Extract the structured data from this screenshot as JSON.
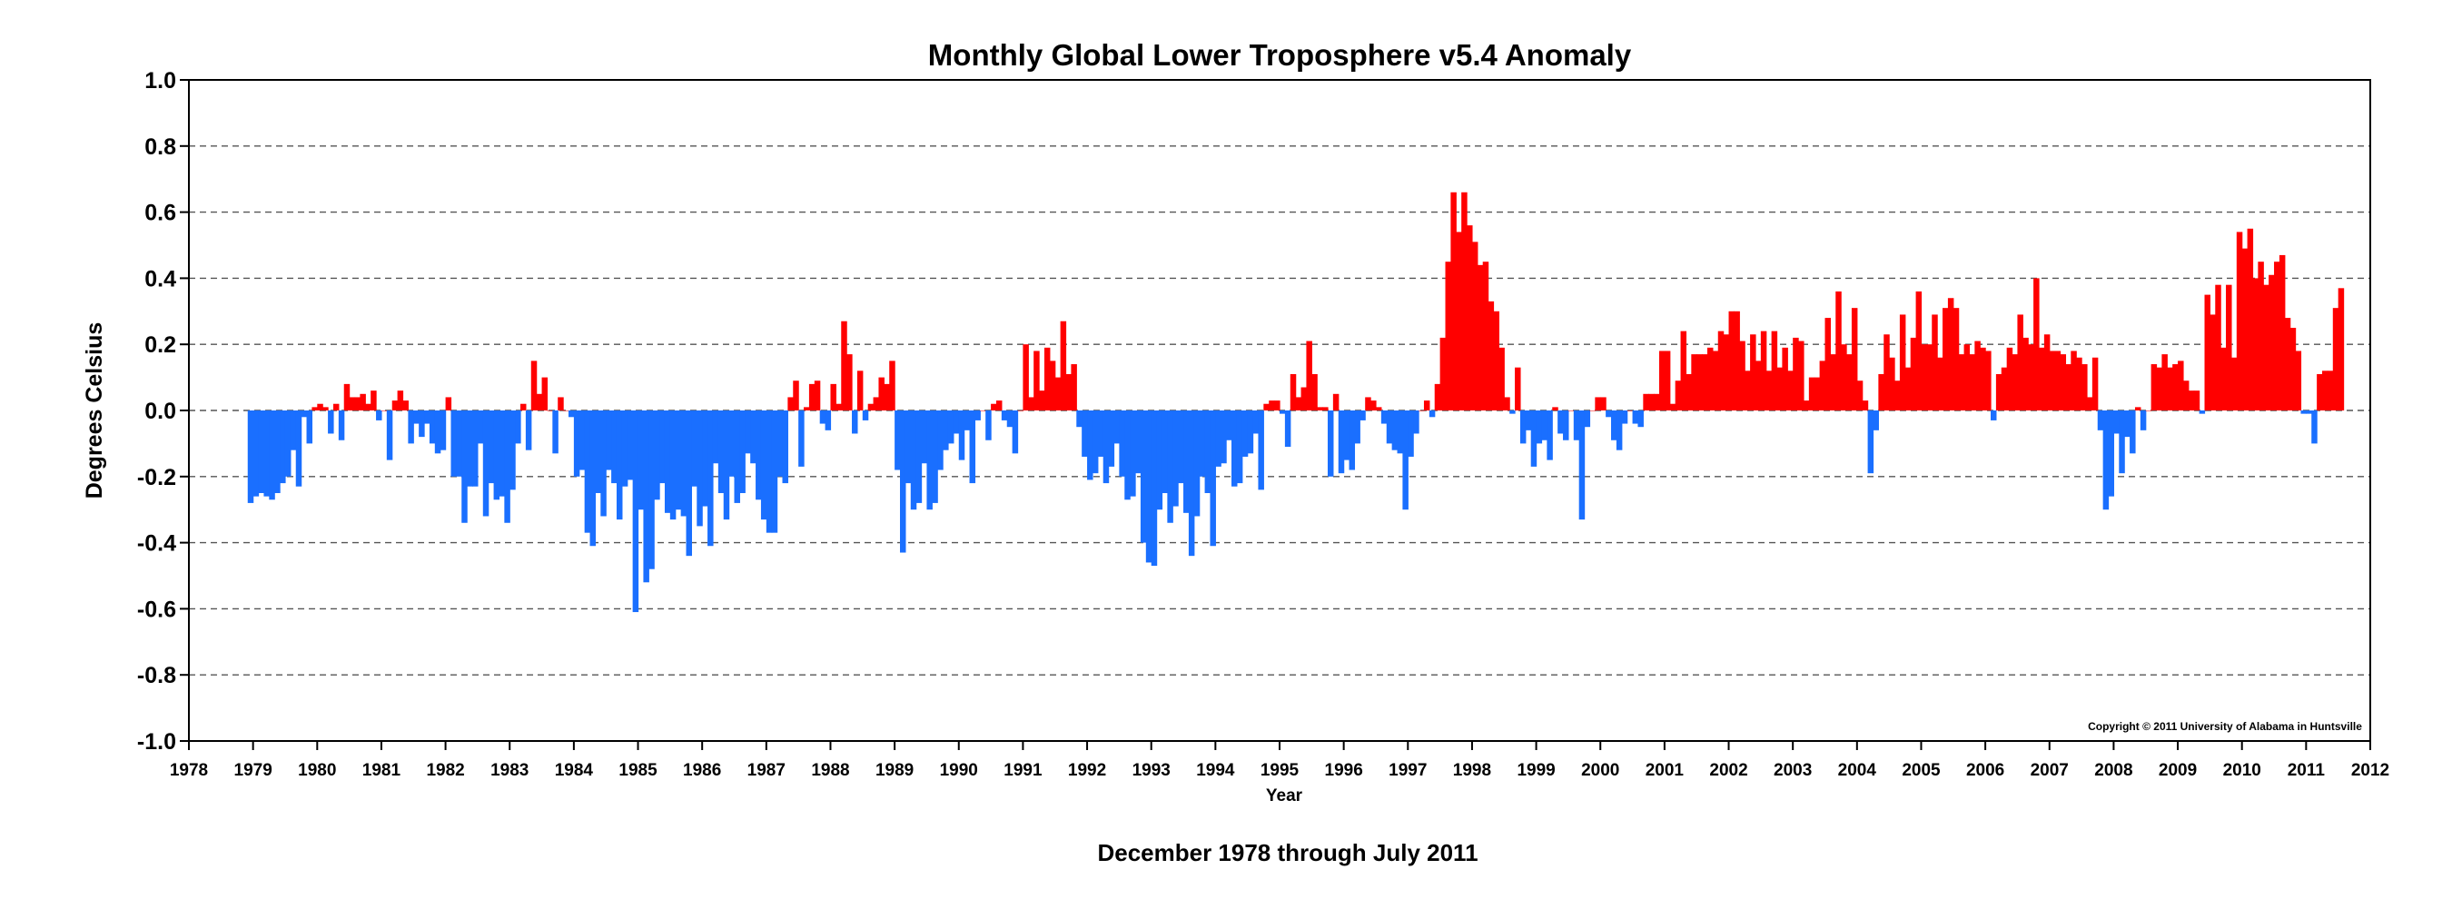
{
  "chart_data": {
    "type": "bar",
    "title": "Monthly Global Lower Troposphere v5.4 Anomaly",
    "subtitle": "December 1978 through July 2011",
    "xlabel": "Year",
    "ylabel": "Degrees Celsius",
    "copyright": "Copyright © 2011 University of Alabama in Huntsville",
    "xlim": [
      1978,
      2012
    ],
    "ylim": [
      -1.0,
      1.0
    ],
    "yticks": [
      "1.0",
      "0.8",
      "0.6",
      "0.4",
      "0.2",
      "0.0",
      "-0.2",
      "-0.4",
      "-0.6",
      "-0.8",
      "-1.0"
    ],
    "ytick_values": [
      1.0,
      0.8,
      0.6,
      0.4,
      0.2,
      0.0,
      -0.2,
      -0.4,
      -0.6,
      -0.8,
      -1.0
    ],
    "xticks": [
      "1978",
      "1979",
      "1980",
      "1981",
      "1982",
      "1983",
      "1984",
      "1985",
      "1986",
      "1987",
      "1988",
      "1989",
      "1990",
      "1991",
      "1992",
      "1993",
      "1994",
      "1995",
      "1996",
      "1997",
      "1998",
      "1999",
      "2000",
      "2001",
      "2002",
      "2003",
      "2004",
      "2005",
      "2006",
      "2007",
      "2008",
      "2009",
      "2010",
      "2011",
      "2012"
    ],
    "xtick_values": [
      1978,
      1979,
      1980,
      1981,
      1982,
      1983,
      1984,
      1985,
      1986,
      1987,
      1988,
      1989,
      1990,
      1991,
      1992,
      1993,
      1994,
      1995,
      1996,
      1997,
      1998,
      1999,
      2000,
      2001,
      2002,
      2003,
      2004,
      2005,
      2006,
      2007,
      2008,
      2009,
      2010,
      2011,
      2012
    ],
    "grid": true,
    "colors": {
      "positive": "#ff0000",
      "negative": "#1a6fff"
    },
    "start": "1978-12",
    "end": "2011-07",
    "values": [
      -0.28,
      -0.26,
      -0.25,
      -0.26,
      -0.27,
      -0.25,
      -0.22,
      -0.2,
      -0.12,
      -0.23,
      -0.02,
      -0.1,
      0.01,
      0.02,
      0.01,
      -0.07,
      0.02,
      -0.09,
      0.08,
      0.04,
      0.04,
      0.05,
      0.02,
      0.06,
      -0.03,
      0.0,
      -0.15,
      0.03,
      0.06,
      0.03,
      -0.1,
      -0.04,
      -0.08,
      -0.04,
      -0.1,
      -0.13,
      -0.12,
      0.04,
      -0.2,
      -0.2,
      -0.34,
      -0.23,
      -0.23,
      -0.1,
      -0.32,
      -0.22,
      -0.27,
      -0.26,
      -0.34,
      -0.24,
      -0.1,
      0.02,
      -0.12,
      0.15,
      0.05,
      0.1,
      0.0,
      -0.13,
      0.04,
      0.0,
      -0.02,
      -0.2,
      -0.18,
      -0.37,
      -0.41,
      -0.25,
      -0.32,
      -0.18,
      -0.22,
      -0.33,
      -0.23,
      -0.21,
      -0.61,
      -0.3,
      -0.52,
      -0.48,
      -0.27,
      -0.22,
      -0.31,
      -0.33,
      -0.3,
      -0.32,
      -0.44,
      -0.23,
      -0.35,
      -0.29,
      -0.41,
      -0.16,
      -0.25,
      -0.33,
      -0.2,
      -0.28,
      -0.25,
      -0.13,
      -0.16,
      -0.27,
      -0.33,
      -0.37,
      -0.37,
      -0.2,
      -0.22,
      0.04,
      0.09,
      -0.17,
      0.01,
      0.08,
      0.09,
      -0.04,
      -0.06,
      0.08,
      0.02,
      0.27,
      0.17,
      -0.07,
      0.12,
      -0.03,
      0.02,
      0.04,
      0.1,
      0.08,
      0.15,
      -0.18,
      -0.43,
      -0.22,
      -0.3,
      -0.28,
      -0.16,
      -0.3,
      -0.28,
      -0.18,
      -0.12,
      -0.1,
      -0.07,
      -0.15,
      -0.06,
      -0.22,
      -0.03,
      0.0,
      -0.09,
      0.02,
      0.03,
      -0.03,
      -0.05,
      -0.13,
      0.0,
      0.2,
      0.04,
      0.18,
      0.06,
      0.19,
      0.15,
      0.1,
      0.27,
      0.11,
      0.14,
      -0.05,
      -0.14,
      -0.21,
      -0.19,
      -0.14,
      -0.22,
      -0.17,
      -0.1,
      -0.2,
      -0.27,
      -0.26,
      -0.19,
      -0.4,
      -0.46,
      -0.47,
      -0.3,
      -0.25,
      -0.34,
      -0.29,
      -0.22,
      -0.31,
      -0.44,
      -0.32,
      -0.2,
      -0.25,
      -0.41,
      -0.17,
      -0.16,
      -0.09,
      -0.23,
      -0.22,
      -0.14,
      -0.13,
      -0.07,
      -0.24,
      0.02,
      0.03,
      0.03,
      -0.01,
      -0.11,
      0.11,
      0.04,
      0.07,
      0.21,
      0.11,
      0.01,
      0.01,
      -0.2,
      0.05,
      -0.19,
      -0.15,
      -0.18,
      -0.1,
      -0.03,
      0.04,
      0.03,
      0.01,
      -0.04,
      -0.1,
      -0.12,
      -0.13,
      -0.3,
      -0.14,
      -0.07,
      0.0,
      0.03,
      -0.02,
      0.08,
      0.22,
      0.45,
      0.66,
      0.54,
      0.66,
      0.56,
      0.51,
      0.44,
      0.45,
      0.33,
      0.3,
      0.19,
      0.04,
      -0.01,
      0.13,
      -0.1,
      -0.06,
      -0.17,
      -0.1,
      -0.09,
      -0.15,
      0.01,
      -0.07,
      -0.09,
      0.0,
      -0.09,
      -0.33,
      -0.05,
      0.0,
      0.04,
      0.04,
      -0.02,
      -0.09,
      -0.12,
      -0.04,
      0.0,
      -0.04,
      -0.05,
      0.05,
      0.05,
      0.05,
      0.18,
      0.18,
      0.02,
      0.09,
      0.24,
      0.11,
      0.17,
      0.17,
      0.17,
      0.19,
      0.18,
      0.24,
      0.23,
      0.3,
      0.3,
      0.21,
      0.12,
      0.23,
      0.15,
      0.24,
      0.12,
      0.24,
      0.13,
      0.19,
      0.12,
      0.22,
      0.21,
      0.03,
      0.1,
      0.1,
      0.15,
      0.28,
      0.17,
      0.36,
      0.2,
      0.17,
      0.31,
      0.09,
      0.03,
      -0.19,
      -0.06,
      0.11,
      0.23,
      0.16,
      0.09,
      0.29,
      0.13,
      0.22,
      0.36,
      0.2,
      0.2,
      0.29,
      0.16,
      0.31,
      0.34,
      0.31,
      0.17,
      0.2,
      0.17,
      0.21,
      0.19,
      0.18,
      -0.03,
      0.11,
      0.13,
      0.19,
      0.17,
      0.29,
      0.22,
      0.2,
      0.4,
      0.19,
      0.23,
      0.18,
      0.18,
      0.17,
      0.14,
      0.18,
      0.16,
      0.14,
      0.04,
      0.16,
      -0.06,
      -0.3,
      -0.26,
      -0.07,
      -0.19,
      -0.08,
      -0.13,
      0.01,
      -0.06,
      0.0,
      0.14,
      0.13,
      0.17,
      0.13,
      0.14,
      0.15,
      0.09,
      0.06,
      0.06,
      -0.01,
      0.35,
      0.29,
      0.38,
      0.19,
      0.38,
      0.16,
      0.54,
      0.49,
      0.55,
      0.4,
      0.45,
      0.38,
      0.41,
      0.45,
      0.47,
      0.28,
      0.25,
      0.18,
      -0.01,
      -0.01,
      -0.1,
      0.11,
      0.12,
      0.12,
      0.31,
      0.37
    ]
  }
}
